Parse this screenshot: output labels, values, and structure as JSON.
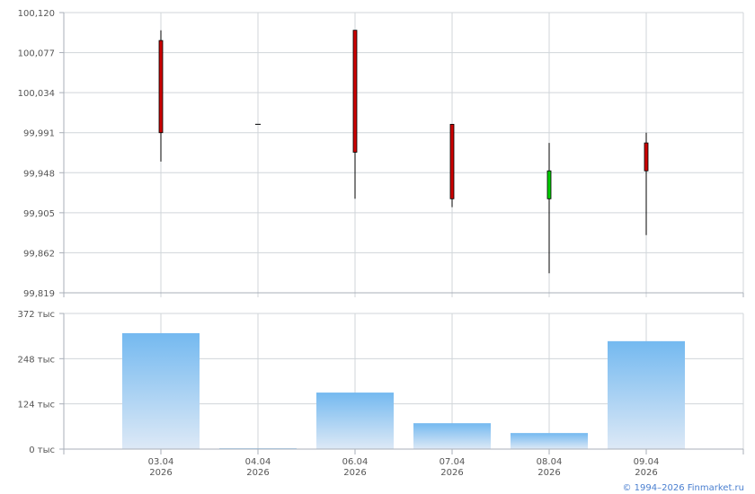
{
  "chart_data": [
    {
      "type": "candlestick",
      "categories": [
        "03.04 2026",
        "04.04 2026",
        "06.04 2026",
        "07.04 2026",
        "08.04 2026",
        "09.04 2026"
      ],
      "ohlc": [
        {
          "open": 100.09,
          "high": 100.101,
          "low": 99.96,
          "close": 99.991
        },
        {
          "open": 100.0,
          "high": 100.0,
          "low": 100.0,
          "close": 100.0
        },
        {
          "open": 100.101,
          "high": 100.101,
          "low": 99.92,
          "close": 99.97
        },
        {
          "open": 100.0,
          "high": 100.0,
          "low": 99.911,
          "close": 99.92
        },
        {
          "open": 99.92,
          "high": 99.98,
          "low": 99.84,
          "close": 99.95
        },
        {
          "open": 99.98,
          "high": 99.991,
          "low": 99.881,
          "close": 99.95
        }
      ],
      "ylim": [
        99.819,
        100.12
      ],
      "yticks": [
        "100,120",
        "100,077",
        "100,034",
        "99,991",
        "99,948",
        "99,905",
        "99,862",
        "99,819"
      ],
      "grid": true,
      "colors": {
        "up": "#00cc00",
        "down": "#cc0000",
        "wick": "#000000",
        "grid": "#d0d5da"
      }
    },
    {
      "type": "bar",
      "categories": [
        "03.04 2026",
        "04.04 2026",
        "06.04 2026",
        "07.04 2026",
        "08.04 2026",
        "09.04 2026"
      ],
      "values": [
        318,
        2,
        155,
        71,
        44,
        296
      ],
      "unit": "тыс",
      "ylim": [
        0,
        372
      ],
      "yticks": [
        "372 тыс",
        "248 тыс",
        "124 тыс",
        "0 тыс"
      ],
      "xtick_labels": [
        [
          "03.04",
          "2026"
        ],
        [
          "04.04",
          "2026"
        ],
        [
          "06.04",
          "2026"
        ],
        [
          "07.04",
          "2026"
        ],
        [
          "08.04",
          "2026"
        ],
        [
          "09.04",
          "2026"
        ]
      ],
      "grid": true,
      "colors": {
        "bar_top": "#74b9f0",
        "bar_bottom": "#dde9f6"
      }
    }
  ],
  "footer": {
    "copyright": "© 1994–2026 Finmarket.ru"
  }
}
